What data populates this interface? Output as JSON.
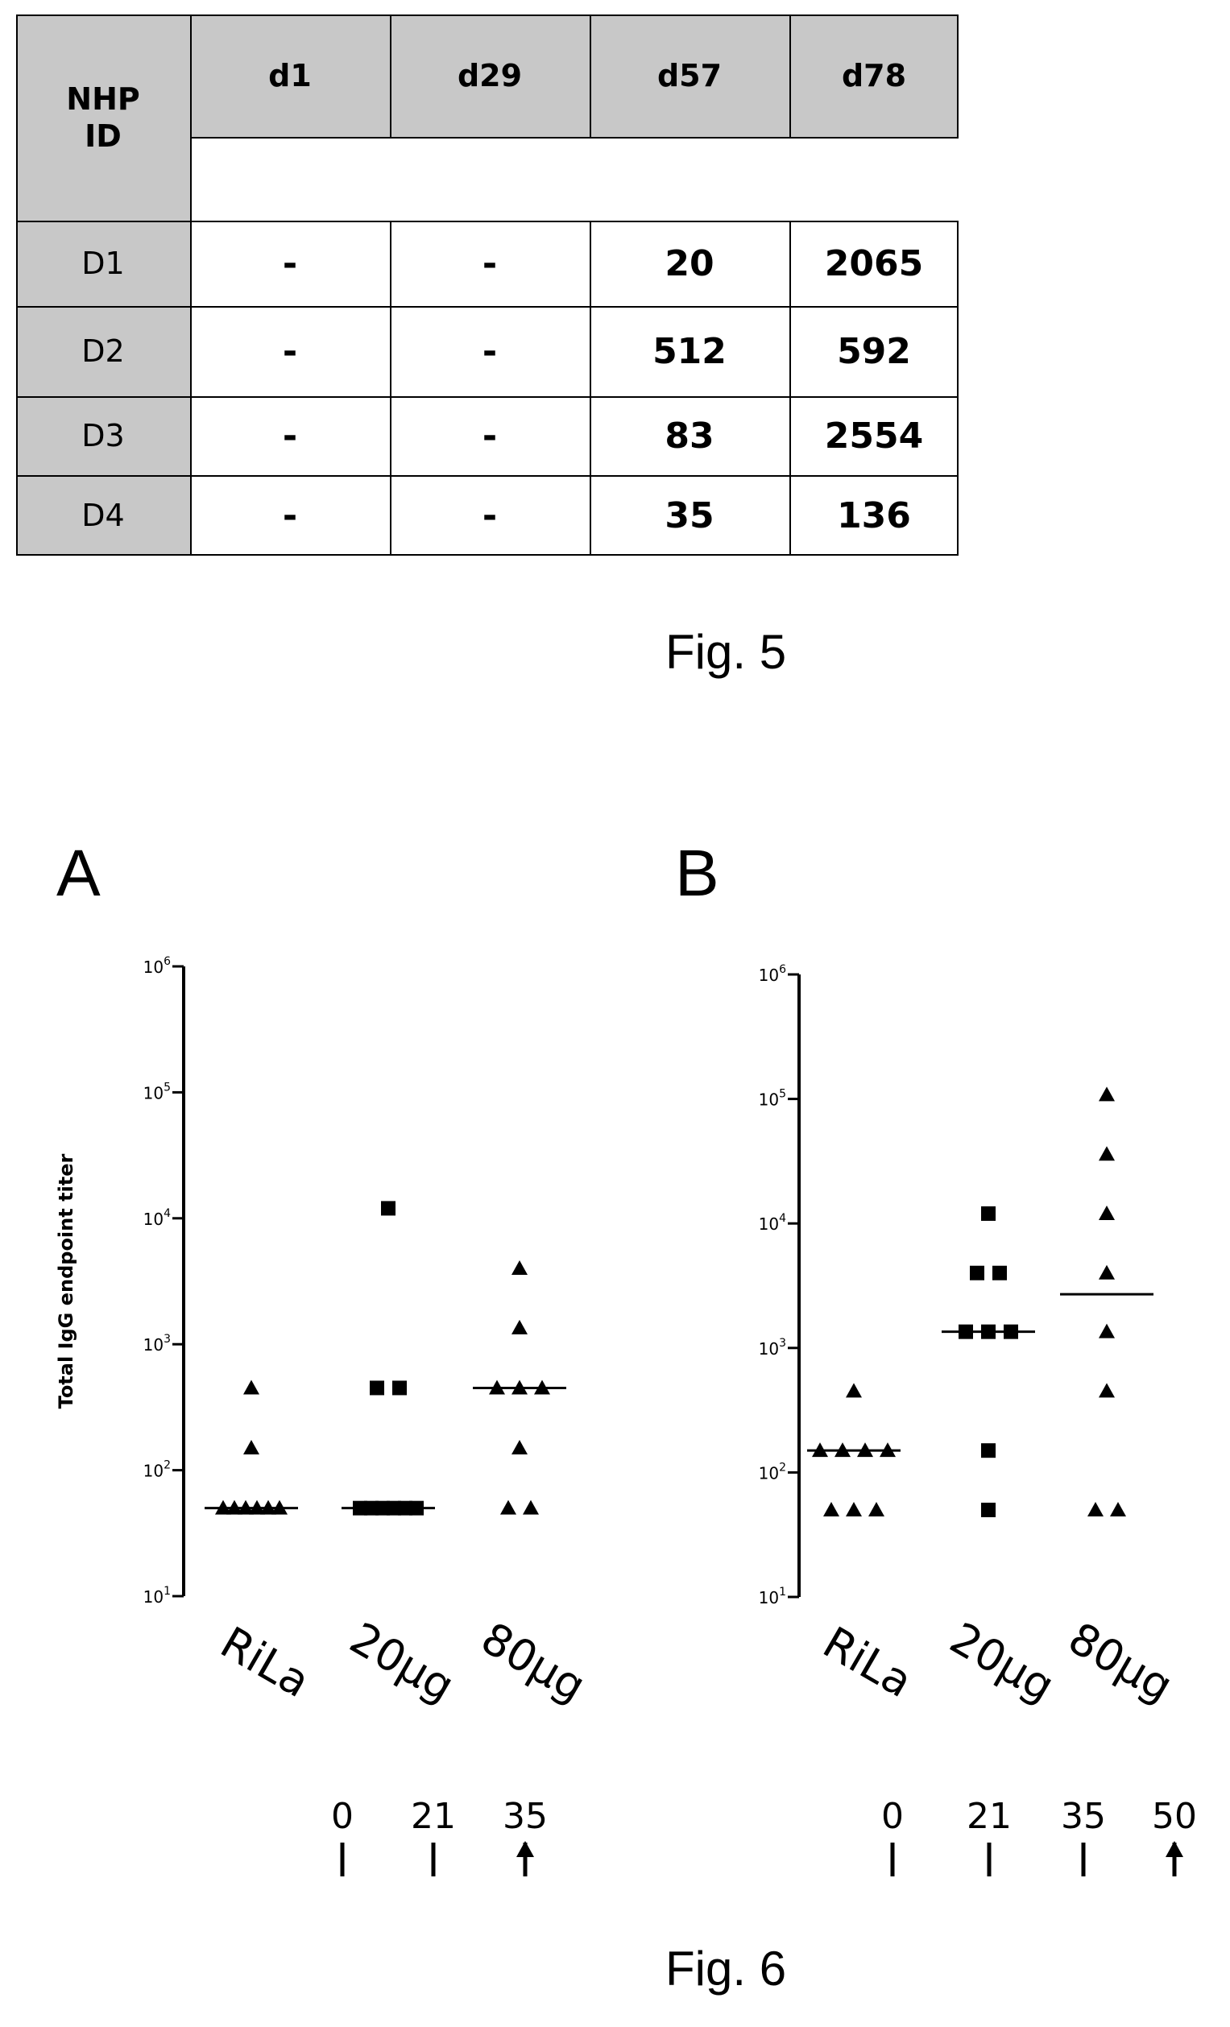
{
  "fig5": {
    "caption": "Fig. 5",
    "header_id": "NHP\nID",
    "columns": [
      "d1",
      "d29",
      "d57",
      "d78"
    ],
    "rows": [
      {
        "id": "D1",
        "values": [
          "-",
          "-",
          "20",
          "2065"
        ]
      },
      {
        "id": "D2",
        "values": [
          "-",
          "-",
          "512",
          "592"
        ]
      },
      {
        "id": "D3",
        "values": [
          "-",
          "-",
          "83",
          "2554"
        ]
      },
      {
        "id": "D4",
        "values": [
          "-",
          "-",
          "35",
          "136"
        ]
      }
    ]
  },
  "fig6": {
    "caption": "Fig. 6",
    "panels": [
      "A",
      "B"
    ]
  },
  "chart_data": [
    {
      "type": "scatter",
      "panel": "A",
      "ylabel": "Total IgG endpoint titer",
      "yscale": "log",
      "ylim": [
        10,
        1000000
      ],
      "yticks": [
        "10^1",
        "10^2",
        "10^3",
        "10^4",
        "10^5",
        "10^6"
      ],
      "categories": [
        "RiLa",
        "20µg",
        "80µg"
      ],
      "series": [
        {
          "category": "RiLa",
          "marker": "triangle",
          "values": [
            50,
            50,
            50,
            50,
            50,
            50,
            150,
            450
          ],
          "median": 50
        },
        {
          "category": "20µg",
          "marker": "square",
          "values": [
            50,
            50,
            50,
            50,
            50,
            50,
            450,
            450,
            12000
          ],
          "median": 50
        },
        {
          "category": "80µg",
          "marker": "triangle",
          "values": [
            50,
            50,
            150,
            450,
            450,
            450,
            1350,
            4000
          ],
          "median": 450
        }
      ],
      "timeline": {
        "labels": [
          "0",
          "21",
          "35"
        ],
        "arrows": [
          "down",
          "down",
          "up"
        ]
      }
    },
    {
      "type": "scatter",
      "panel": "B",
      "yscale": "log",
      "ylim": [
        10,
        1000000
      ],
      "yticks": [
        "10^1",
        "10^2",
        "10^3",
        "10^4",
        "10^5",
        "10^6"
      ],
      "categories": [
        "RiLa",
        "20µg",
        "80µg"
      ],
      "series": [
        {
          "category": "RiLa",
          "marker": "triangle",
          "values": [
            50,
            50,
            50,
            150,
            150,
            150,
            150,
            450
          ],
          "median": 150
        },
        {
          "category": "20µg",
          "marker": "square",
          "values": [
            50,
            150,
            1350,
            1350,
            1350,
            4000,
            4000,
            12000
          ],
          "median": 1350
        },
        {
          "category": "80µg",
          "marker": "triangle",
          "values": [
            50,
            50,
            450,
            1350,
            4000,
            12000,
            36000,
            108000
          ],
          "median": 2700
        }
      ],
      "timeline": {
        "labels": [
          "0",
          "21",
          "35",
          "50"
        ],
        "arrows": [
          "down",
          "down",
          "down",
          "up"
        ]
      }
    }
  ]
}
